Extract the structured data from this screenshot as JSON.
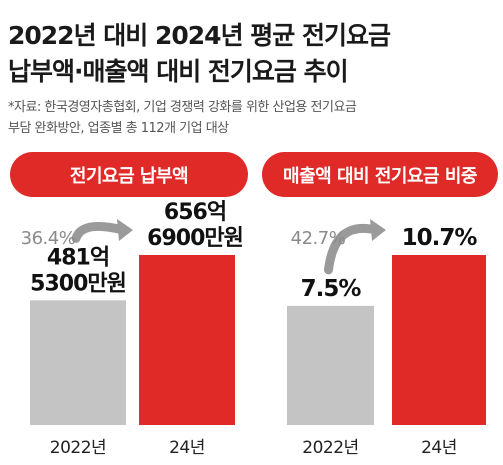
{
  "header": {
    "title_line1": "2022년 대비 2024년 평균 전기요금",
    "title_line2": "납부액·매출액 대비 전기요금 추이",
    "source_line1": "*자료: 한국경영자총협회, 기업 경쟁력 강화를 위한 산업용 전기요금",
    "source_line2": "부담 완화방안, 업종별 총 112개 기업 대상"
  },
  "colors": {
    "accent": "#e02a27",
    "gray_bar": "#c4c4c4",
    "pct_text": "#8a8a8a"
  },
  "chart_data": [
    {
      "type": "bar",
      "title": "전기요금 납부액",
      "categories": [
        "2022년",
        "24년"
      ],
      "values": [
        48153,
        65669
      ],
      "value_labels": [
        [
          "481억",
          "5300만원"
        ],
        [
          "656억",
          "6900만원"
        ]
      ],
      "change_label": "36.4%"
    },
    {
      "type": "bar",
      "title": "매출액 대비 전기요금 비중",
      "categories": [
        "2022년",
        "24년"
      ],
      "values": [
        7.5,
        10.7
      ],
      "value_labels": [
        [
          "7.5%"
        ],
        [
          "10.7%"
        ]
      ],
      "change_label": "42.7%"
    }
  ]
}
